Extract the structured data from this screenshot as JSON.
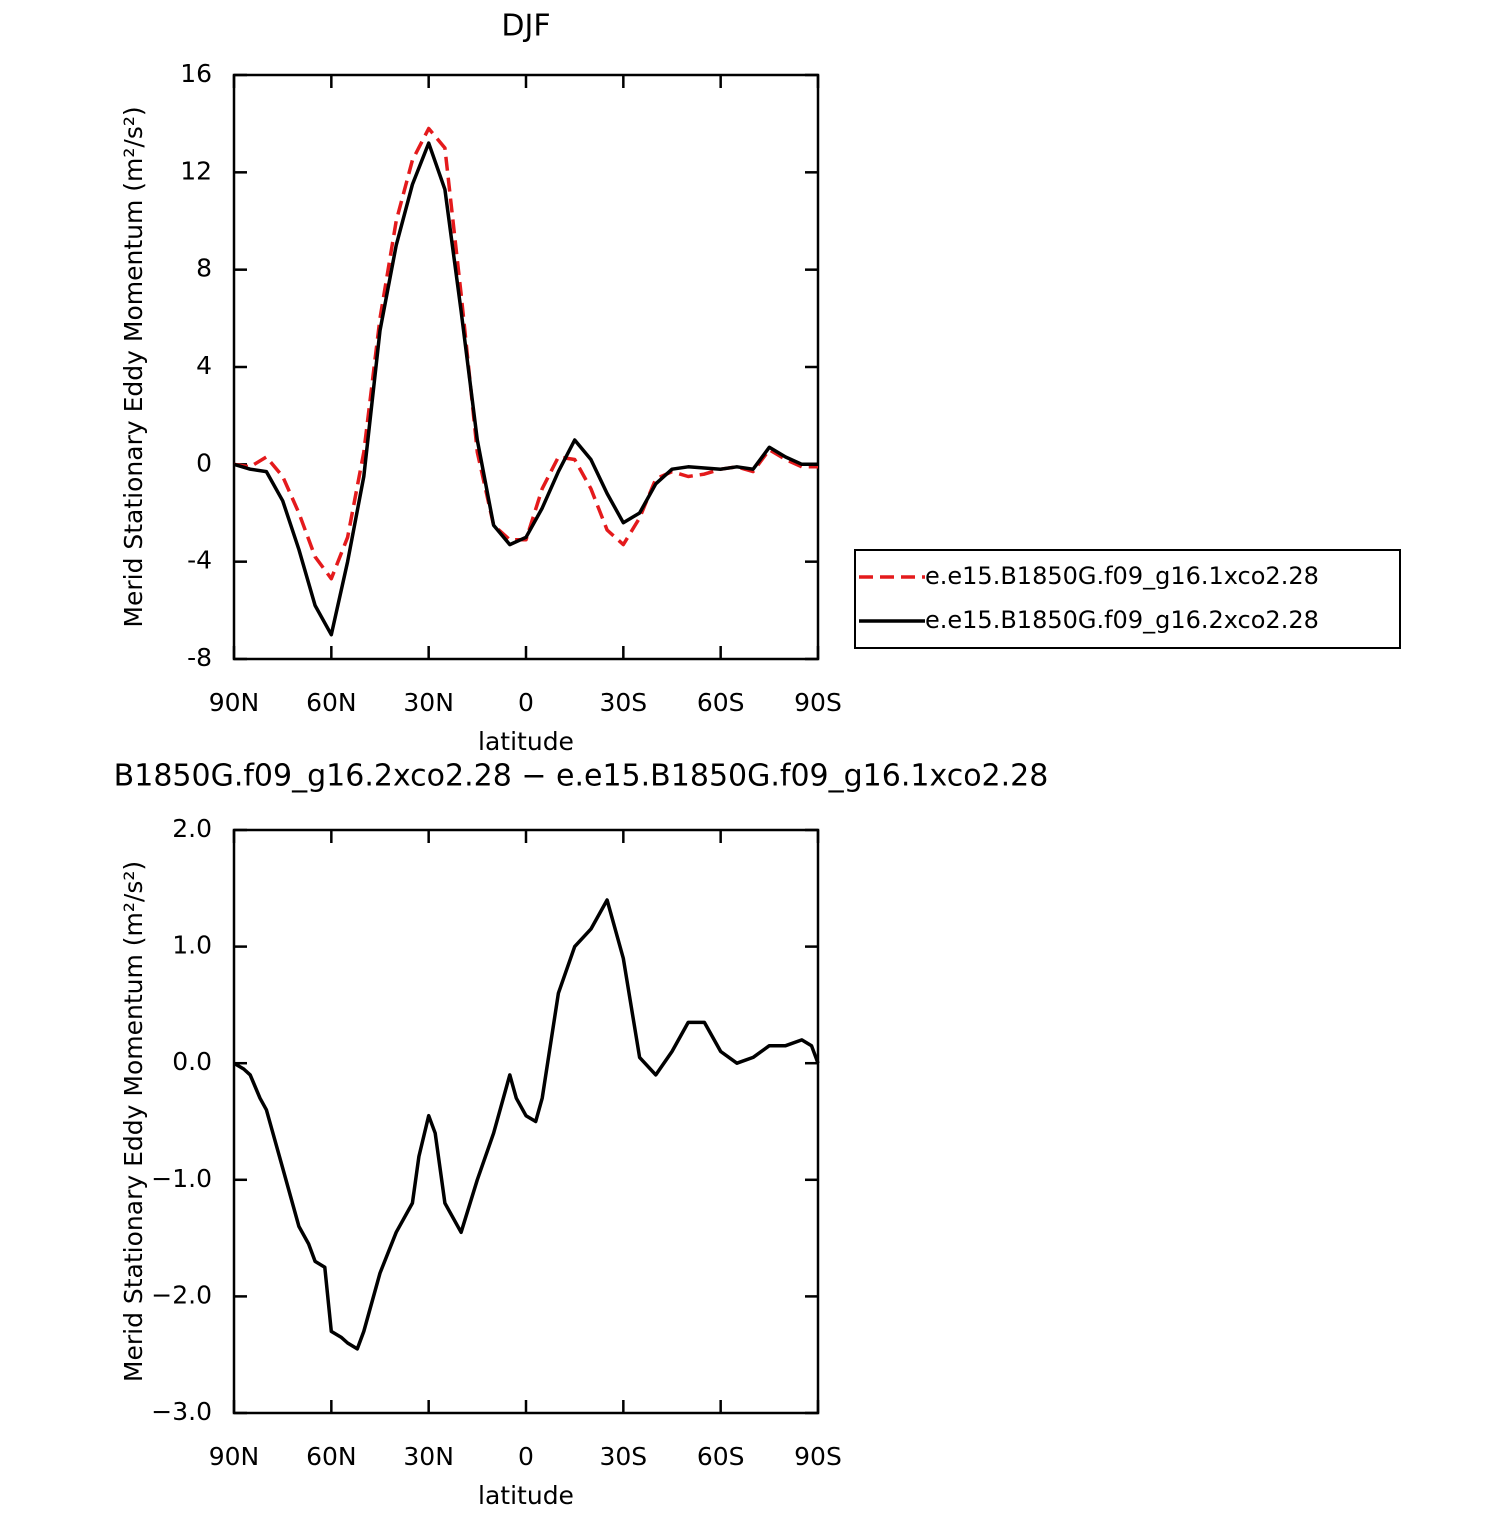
{
  "chart_data": [
    {
      "type": "line",
      "title": "DJF",
      "x_label": "latitude",
      "y_label": "Merid Stationary Eddy Momentum (m²/s²)",
      "x": [
        90,
        85,
        80,
        75,
        70,
        65,
        60,
        55,
        50,
        45,
        40,
        35,
        30,
        25,
        20,
        15,
        10,
        5,
        0,
        -5,
        -10,
        -15,
        -20,
        -25,
        -30,
        -35,
        -40,
        -45,
        -50,
        -55,
        -60,
        -65,
        -70,
        -75,
        -80,
        -85,
        -90
      ],
      "xlim": [
        90,
        -90
      ],
      "xticks": [
        {
          "value": 90,
          "label": "90N"
        },
        {
          "value": 60,
          "label": "60N"
        },
        {
          "value": 30,
          "label": "30N"
        },
        0,
        {
          "value": -30,
          "label": "30S"
        },
        {
          "value": -60,
          "label": "60S"
        },
        {
          "value": -90,
          "label": "90S"
        }
      ],
      "ylim": [
        -8,
        16
      ],
      "yticks": [
        -8,
        -4,
        0,
        4,
        8,
        12,
        16
      ],
      "legend": "right",
      "series": [
        {
          "name": "e.e15.B1850G.f09_g16.1xco2.28",
          "color": "#e41a1c",
          "dash": true,
          "values": [
            0,
            -0.1,
            0.3,
            -0.5,
            -2,
            -3.8,
            -4.7,
            -3.0,
            0.5,
            6.0,
            10,
            12.5,
            13.8,
            13.0,
            7,
            0.5,
            -2.5,
            -3.1,
            -3.1,
            -1.0,
            0.3,
            0.2,
            -1.0,
            -2.7,
            -3.3,
            -2.2,
            -0.6,
            -0.3,
            -0.5,
            -0.4,
            -0.2,
            -0.1,
            -0.3,
            0.6,
            0.2,
            -0.1,
            -0.1
          ]
        },
        {
          "name": "e.e15.B1850G.f09_g16.2xco2.28",
          "color": "#000000",
          "dash": false,
          "values": [
            0,
            -0.2,
            -0.3,
            -1.5,
            -3.5,
            -5.8,
            -7.0,
            -4.0,
            -0.5,
            5.5,
            9,
            11.5,
            13.2,
            11.3,
            6.3,
            1.0,
            -2.5,
            -3.3,
            -3.0,
            -1.8,
            -0.3,
            1.0,
            0.2,
            -1.2,
            -2.4,
            -2.0,
            -0.8,
            -0.2,
            -0.1,
            -0.15,
            -0.2,
            -0.1,
            -0.2,
            0.7,
            0.3,
            0.0,
            0.0
          ]
        }
      ]
    },
    {
      "type": "line",
      "title": "B1850G.f09_g16.2xco2.28 − e.e15.B1850G.f09_g16.1xco2.28",
      "x_label": "latitude",
      "y_label": "Merid Stationary Eddy Momentum (m²/s²)",
      "x": [
        90,
        87,
        85,
        82,
        80,
        75,
        70,
        67,
        65,
        62,
        60,
        57,
        55,
        52,
        50,
        45,
        40,
        35,
        33,
        30,
        28,
        25,
        20,
        15,
        10,
        5,
        3,
        0,
        -3,
        -5,
        -10,
        -15,
        -20,
        -25,
        -30,
        -35,
        -40,
        -45,
        -50,
        -55,
        -60,
        -65,
        -70,
        -75,
        -80,
        -85,
        -88,
        -90
      ],
      "xlim": [
        90,
        -90
      ],
      "xticks": [
        {
          "value": 90,
          "label": "90N"
        },
        {
          "value": 60,
          "label": "60N"
        },
        {
          "value": 30,
          "label": "30N"
        },
        0,
        {
          "value": -30,
          "label": "30S"
        },
        {
          "value": -60,
          "label": "60S"
        },
        {
          "value": -90,
          "label": "90S"
        }
      ],
      "ylim": [
        -3,
        2
      ],
      "yticks": [
        {
          "value": -3,
          "label": "−3.0"
        },
        {
          "value": -2,
          "label": "−2.0"
        },
        {
          "value": -1,
          "label": "−1.0"
        },
        {
          "value": 0,
          "label": "0.0"
        },
        {
          "value": 1,
          "label": "1.0"
        },
        {
          "value": 2,
          "label": "2.0"
        }
      ],
      "series": [
        {
          "color": "#000000",
          "dash": false,
          "values": [
            0.0,
            -0.05,
            -0.1,
            -0.3,
            -0.4,
            -0.9,
            -1.4,
            -1.55,
            -1.7,
            -1.75,
            -2.3,
            -2.35,
            -2.4,
            -2.45,
            -2.3,
            -1.8,
            -1.45,
            -1.2,
            -0.8,
            -0.45,
            -0.6,
            -1.2,
            -1.45,
            -1.0,
            -0.6,
            -0.1,
            -0.3,
            -0.45,
            -0.5,
            -0.3,
            0.6,
            1.0,
            1.15,
            1.4,
            0.9,
            0.05,
            -0.1,
            0.1,
            0.35,
            0.35,
            0.1,
            0.0,
            0.05,
            0.15,
            0.15,
            0.2,
            0.15,
            0.0
          ]
        }
      ]
    }
  ]
}
